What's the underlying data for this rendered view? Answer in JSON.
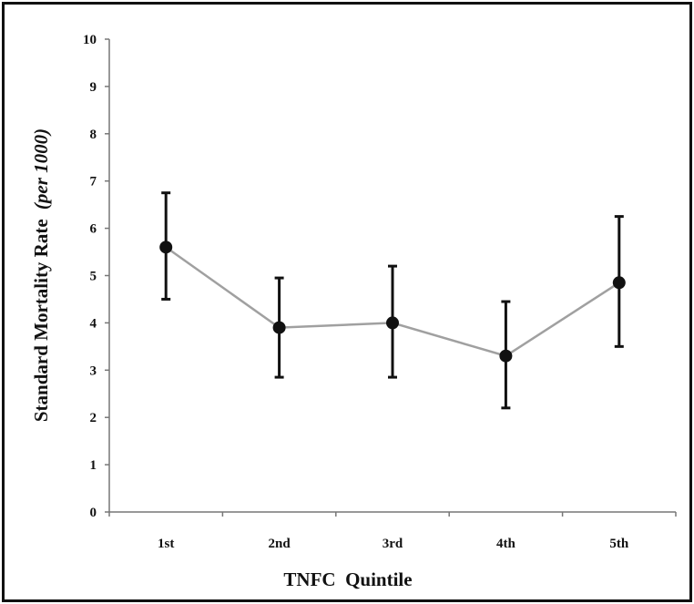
{
  "chart_data": {
    "type": "line",
    "title": "",
    "xlabel": "TNFC  Quintile",
    "ylabel": "Standard Mortality Rate",
    "ylabel_unit": "(per 1000)",
    "categories": [
      "1st",
      "2nd",
      "3rd",
      "4th",
      "5th"
    ],
    "ylim": [
      0,
      10
    ],
    "yticks": [
      "0",
      "1",
      "2",
      "3",
      "4",
      "5",
      "6",
      "7",
      "8",
      "9",
      "10"
    ],
    "grid": false,
    "legend": "none",
    "series": [
      {
        "values": [
          5.6,
          3.9,
          4.0,
          3.3,
          4.85
        ],
        "error_low": [
          4.5,
          2.85,
          2.85,
          2.2,
          3.5
        ],
        "error_high": [
          6.75,
          4.95,
          5.2,
          4.45,
          6.25
        ],
        "line_color": "#a0a0a0",
        "marker_color": "#111111",
        "errorbar_color": "#111111"
      }
    ]
  }
}
